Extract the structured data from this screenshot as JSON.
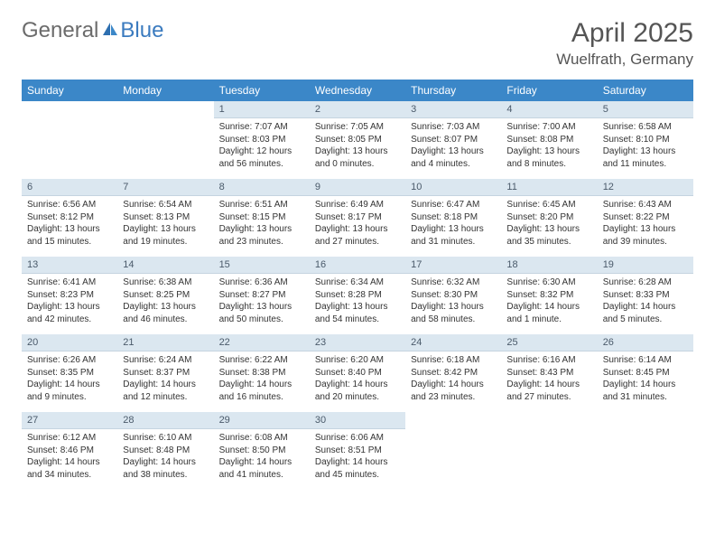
{
  "brand": {
    "part1": "General",
    "part2": "Blue"
  },
  "title": "April 2025",
  "location": "Wuelfrath, Germany",
  "header_bg": "#3b87c8",
  "daybar_bg": "#dbe7f0",
  "weekdays": [
    "Sunday",
    "Monday",
    "Tuesday",
    "Wednesday",
    "Thursday",
    "Friday",
    "Saturday"
  ],
  "weeks": [
    [
      null,
      null,
      {
        "n": "1",
        "sr": "Sunrise: 7:07 AM",
        "ss": "Sunset: 8:03 PM",
        "dl": "Daylight: 12 hours and 56 minutes."
      },
      {
        "n": "2",
        "sr": "Sunrise: 7:05 AM",
        "ss": "Sunset: 8:05 PM",
        "dl": "Daylight: 13 hours and 0 minutes."
      },
      {
        "n": "3",
        "sr": "Sunrise: 7:03 AM",
        "ss": "Sunset: 8:07 PM",
        "dl": "Daylight: 13 hours and 4 minutes."
      },
      {
        "n": "4",
        "sr": "Sunrise: 7:00 AM",
        "ss": "Sunset: 8:08 PM",
        "dl": "Daylight: 13 hours and 8 minutes."
      },
      {
        "n": "5",
        "sr": "Sunrise: 6:58 AM",
        "ss": "Sunset: 8:10 PM",
        "dl": "Daylight: 13 hours and 11 minutes."
      }
    ],
    [
      {
        "n": "6",
        "sr": "Sunrise: 6:56 AM",
        "ss": "Sunset: 8:12 PM",
        "dl": "Daylight: 13 hours and 15 minutes."
      },
      {
        "n": "7",
        "sr": "Sunrise: 6:54 AM",
        "ss": "Sunset: 8:13 PM",
        "dl": "Daylight: 13 hours and 19 minutes."
      },
      {
        "n": "8",
        "sr": "Sunrise: 6:51 AM",
        "ss": "Sunset: 8:15 PM",
        "dl": "Daylight: 13 hours and 23 minutes."
      },
      {
        "n": "9",
        "sr": "Sunrise: 6:49 AM",
        "ss": "Sunset: 8:17 PM",
        "dl": "Daylight: 13 hours and 27 minutes."
      },
      {
        "n": "10",
        "sr": "Sunrise: 6:47 AM",
        "ss": "Sunset: 8:18 PM",
        "dl": "Daylight: 13 hours and 31 minutes."
      },
      {
        "n": "11",
        "sr": "Sunrise: 6:45 AM",
        "ss": "Sunset: 8:20 PM",
        "dl": "Daylight: 13 hours and 35 minutes."
      },
      {
        "n": "12",
        "sr": "Sunrise: 6:43 AM",
        "ss": "Sunset: 8:22 PM",
        "dl": "Daylight: 13 hours and 39 minutes."
      }
    ],
    [
      {
        "n": "13",
        "sr": "Sunrise: 6:41 AM",
        "ss": "Sunset: 8:23 PM",
        "dl": "Daylight: 13 hours and 42 minutes."
      },
      {
        "n": "14",
        "sr": "Sunrise: 6:38 AM",
        "ss": "Sunset: 8:25 PM",
        "dl": "Daylight: 13 hours and 46 minutes."
      },
      {
        "n": "15",
        "sr": "Sunrise: 6:36 AM",
        "ss": "Sunset: 8:27 PM",
        "dl": "Daylight: 13 hours and 50 minutes."
      },
      {
        "n": "16",
        "sr": "Sunrise: 6:34 AM",
        "ss": "Sunset: 8:28 PM",
        "dl": "Daylight: 13 hours and 54 minutes."
      },
      {
        "n": "17",
        "sr": "Sunrise: 6:32 AM",
        "ss": "Sunset: 8:30 PM",
        "dl": "Daylight: 13 hours and 58 minutes."
      },
      {
        "n": "18",
        "sr": "Sunrise: 6:30 AM",
        "ss": "Sunset: 8:32 PM",
        "dl": "Daylight: 14 hours and 1 minute."
      },
      {
        "n": "19",
        "sr": "Sunrise: 6:28 AM",
        "ss": "Sunset: 8:33 PM",
        "dl": "Daylight: 14 hours and 5 minutes."
      }
    ],
    [
      {
        "n": "20",
        "sr": "Sunrise: 6:26 AM",
        "ss": "Sunset: 8:35 PM",
        "dl": "Daylight: 14 hours and 9 minutes."
      },
      {
        "n": "21",
        "sr": "Sunrise: 6:24 AM",
        "ss": "Sunset: 8:37 PM",
        "dl": "Daylight: 14 hours and 12 minutes."
      },
      {
        "n": "22",
        "sr": "Sunrise: 6:22 AM",
        "ss": "Sunset: 8:38 PM",
        "dl": "Daylight: 14 hours and 16 minutes."
      },
      {
        "n": "23",
        "sr": "Sunrise: 6:20 AM",
        "ss": "Sunset: 8:40 PM",
        "dl": "Daylight: 14 hours and 20 minutes."
      },
      {
        "n": "24",
        "sr": "Sunrise: 6:18 AM",
        "ss": "Sunset: 8:42 PM",
        "dl": "Daylight: 14 hours and 23 minutes."
      },
      {
        "n": "25",
        "sr": "Sunrise: 6:16 AM",
        "ss": "Sunset: 8:43 PM",
        "dl": "Daylight: 14 hours and 27 minutes."
      },
      {
        "n": "26",
        "sr": "Sunrise: 6:14 AM",
        "ss": "Sunset: 8:45 PM",
        "dl": "Daylight: 14 hours and 31 minutes."
      }
    ],
    [
      {
        "n": "27",
        "sr": "Sunrise: 6:12 AM",
        "ss": "Sunset: 8:46 PM",
        "dl": "Daylight: 14 hours and 34 minutes."
      },
      {
        "n": "28",
        "sr": "Sunrise: 6:10 AM",
        "ss": "Sunset: 8:48 PM",
        "dl": "Daylight: 14 hours and 38 minutes."
      },
      {
        "n": "29",
        "sr": "Sunrise: 6:08 AM",
        "ss": "Sunset: 8:50 PM",
        "dl": "Daylight: 14 hours and 41 minutes."
      },
      {
        "n": "30",
        "sr": "Sunrise: 6:06 AM",
        "ss": "Sunset: 8:51 PM",
        "dl": "Daylight: 14 hours and 45 minutes."
      },
      null,
      null,
      null
    ]
  ]
}
